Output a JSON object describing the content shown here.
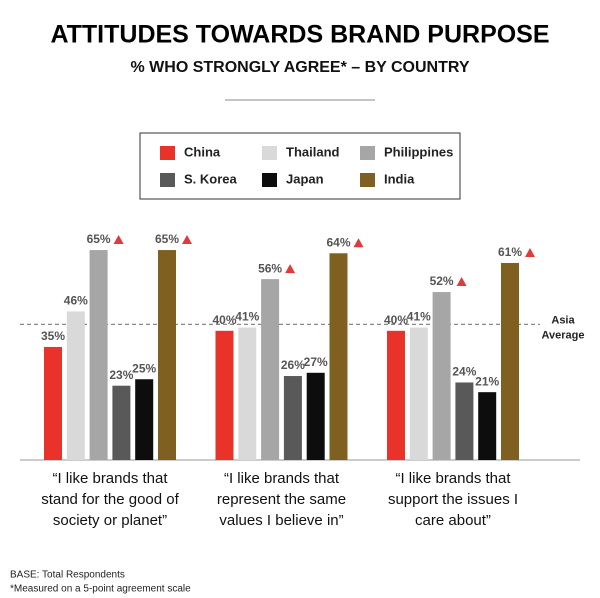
{
  "chart_data": {
    "type": "bar",
    "title": "ATTITUDES TOWARDS BRAND PURPOSE",
    "subtitle": "% WHO STRONGLY AGREE* – BY COUNTRY",
    "categories": [
      "“I like brands that\nstand for the good of\nsociety or planet”",
      "“I like brands that\nrepresent the same\nvalues I believe in”",
      "“I like brands that\nsupport the issues I\ncare about”"
    ],
    "series": [
      {
        "name": "China",
        "color": "#e8322a",
        "values": [
          35,
          40,
          40
        ],
        "value_labels": [
          "35%",
          "40%",
          "40%"
        ]
      },
      {
        "name": "Thailand",
        "color": "#d9d9d9",
        "values": [
          46,
          41,
          41
        ],
        "value_labels": [
          "46%",
          "41%",
          "41%"
        ]
      },
      {
        "name": "Philippines",
        "color": "#a6a6a6",
        "values": [
          65,
          56,
          52
        ],
        "value_labels": [
          "65%",
          "56%",
          "52%"
        ],
        "marker": "triangle"
      },
      {
        "name": "S. Korea",
        "color": "#595959",
        "values": [
          23,
          26,
          24
        ],
        "value_labels": [
          "23%",
          "26%",
          "24%"
        ]
      },
      {
        "name": "Japan",
        "color": "#0d0d0d",
        "values": [
          25,
          27,
          21
        ],
        "value_labels": [
          "25%",
          "27%",
          "21%"
        ]
      },
      {
        "name": "India",
        "color": "#7f6020",
        "values": [
          65,
          64,
          61
        ],
        "value_labels": [
          "65%",
          "64%",
          "61%"
        ],
        "marker": "triangle"
      }
    ],
    "reference_line": {
      "label": "Asia\nAverage",
      "value": 42
    },
    "footnotes": [
      "BASE: Total Respondents",
      "*Measured on a 5-point agreement scale"
    ]
  }
}
